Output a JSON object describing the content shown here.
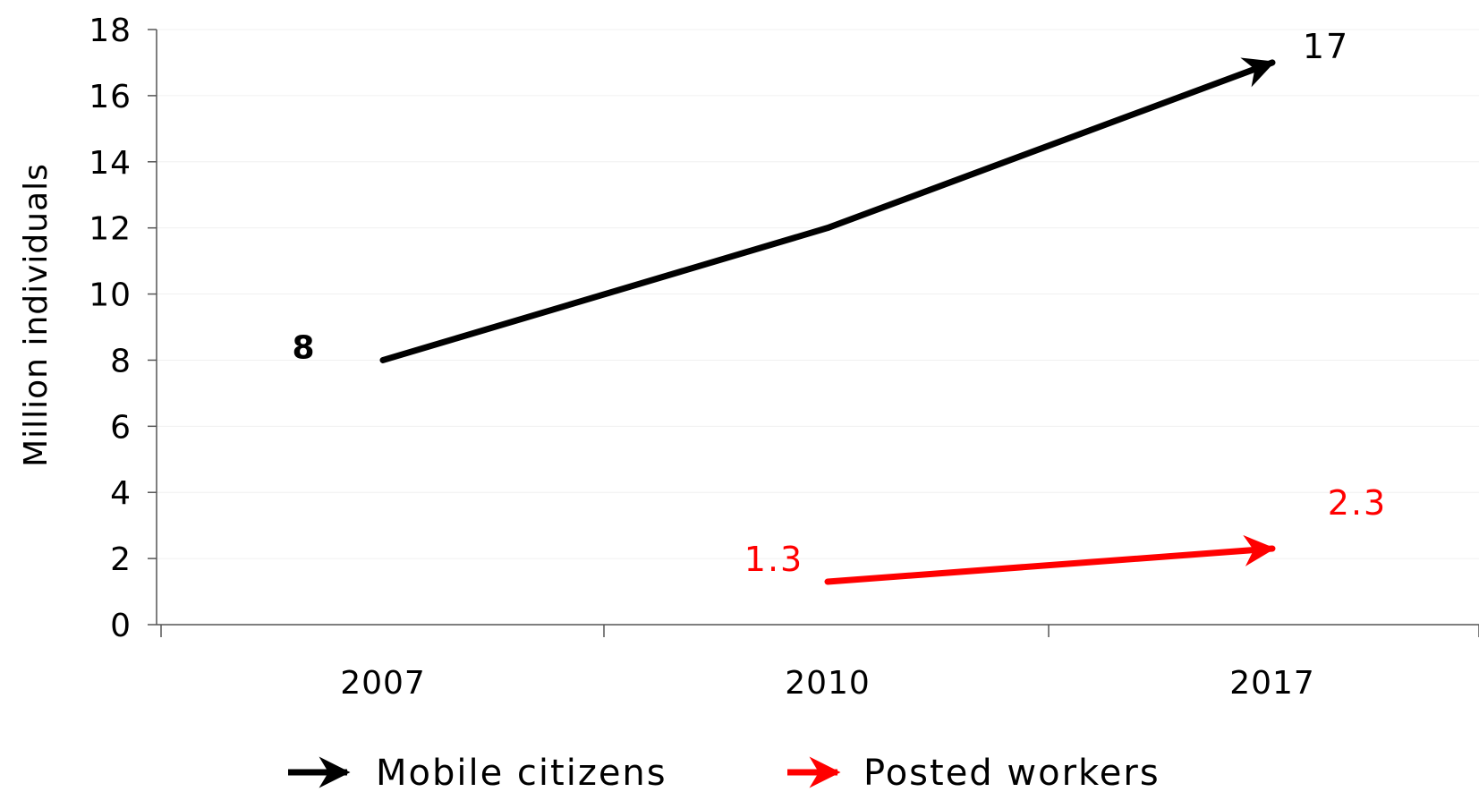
{
  "chart_data": {
    "type": "line",
    "categories": [
      "2007",
      "2010",
      "2017"
    ],
    "ylabel": "Million individuals",
    "ylim": [
      0,
      18
    ],
    "yticks": [
      "0",
      "2",
      "4",
      "6",
      "8",
      "10",
      "12",
      "14",
      "16",
      "18"
    ],
    "grid": true,
    "legend_position": "bottom",
    "series": [
      {
        "name": "Mobile citizens",
        "color": "#000000",
        "points": [
          {
            "x": "2007",
            "y": 8
          },
          {
            "x": "2010",
            "y": 12
          },
          {
            "x": "2017",
            "y": 17
          }
        ],
        "labels": [
          {
            "x": "2007",
            "y": 8,
            "text": "8"
          },
          {
            "x": "2017",
            "y": 17,
            "text": "17"
          }
        ]
      },
      {
        "name": "Posted workers",
        "color": "#ff0000",
        "points": [
          {
            "x": "2010",
            "y": 1.3
          },
          {
            "x": "2017",
            "y": 2.3
          }
        ],
        "labels": [
          {
            "x": "2010",
            "y": 1.3,
            "text": "1.3"
          },
          {
            "x": "2017",
            "y": 2.3,
            "text": "2.3"
          }
        ]
      }
    ]
  }
}
